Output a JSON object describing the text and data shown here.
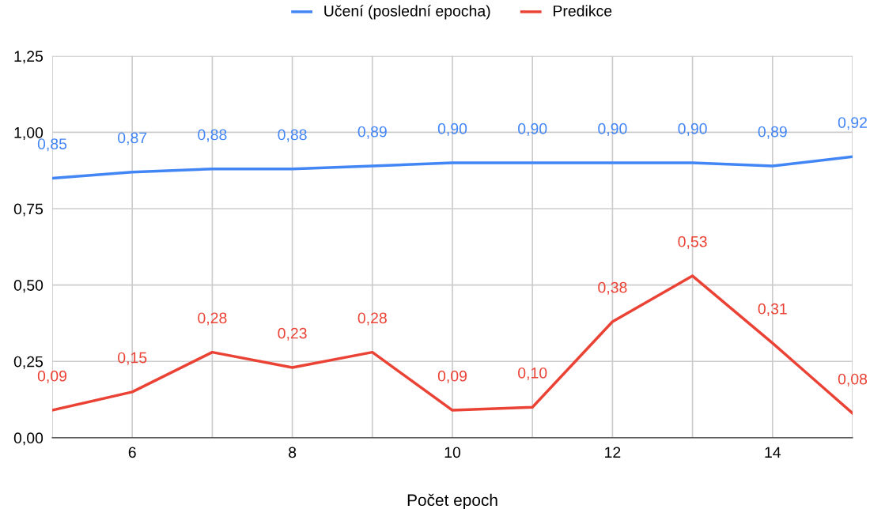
{
  "chart_data": {
    "type": "line",
    "xlabel": "Počet epoch",
    "x": [
      5,
      6,
      7,
      8,
      9,
      10,
      11,
      12,
      13,
      14,
      15
    ],
    "series": [
      {
        "name": "Učení (poslední epocha)",
        "color": "#4285f4",
        "values": [
          0.85,
          0.87,
          0.88,
          0.88,
          0.89,
          0.9,
          0.9,
          0.9,
          0.9,
          0.89,
          0.92
        ],
        "value_labels": [
          "0,85",
          "0,87",
          "0,88",
          "0,88",
          "0,89",
          "0,90",
          "0,90",
          "0,90",
          "0,90",
          "0,89",
          "0,92"
        ]
      },
      {
        "name": "Predikce",
        "color": "#ea4335",
        "values": [
          0.09,
          0.15,
          0.28,
          0.23,
          0.28,
          0.09,
          0.1,
          0.38,
          0.53,
          0.31,
          0.08
        ],
        "value_labels": [
          "0,09",
          "0,15",
          "0,28",
          "0,23",
          "0,28",
          "0,09",
          "0,10",
          "0,38",
          "0,53",
          "0,31",
          "0,08"
        ]
      }
    ],
    "xlim": [
      5,
      15
    ],
    "xticks": [
      {
        "value": 5,
        "label": null
      },
      6,
      {
        "value": 7,
        "label": null
      },
      8,
      {
        "value": 9,
        "label": null
      },
      10,
      {
        "value": 11,
        "label": null
      },
      12,
      {
        "value": 13,
        "label": null
      },
      14,
      {
        "value": 15,
        "label": null
      }
    ],
    "ylim": [
      0,
      1.25
    ],
    "yticks": [
      {
        "value": 0,
        "label": "0,00"
      },
      {
        "value": 0.25,
        "label": "0,25"
      },
      {
        "value": 0.5,
        "label": "0,50"
      },
      {
        "value": 0.75,
        "label": "0,75"
      },
      {
        "value": 1.0,
        "label": "1,00"
      },
      {
        "value": 1.25,
        "label": "1,25"
      }
    ],
    "grid": true,
    "legend": "top",
    "marker": "none",
    "line_style": "solid"
  }
}
